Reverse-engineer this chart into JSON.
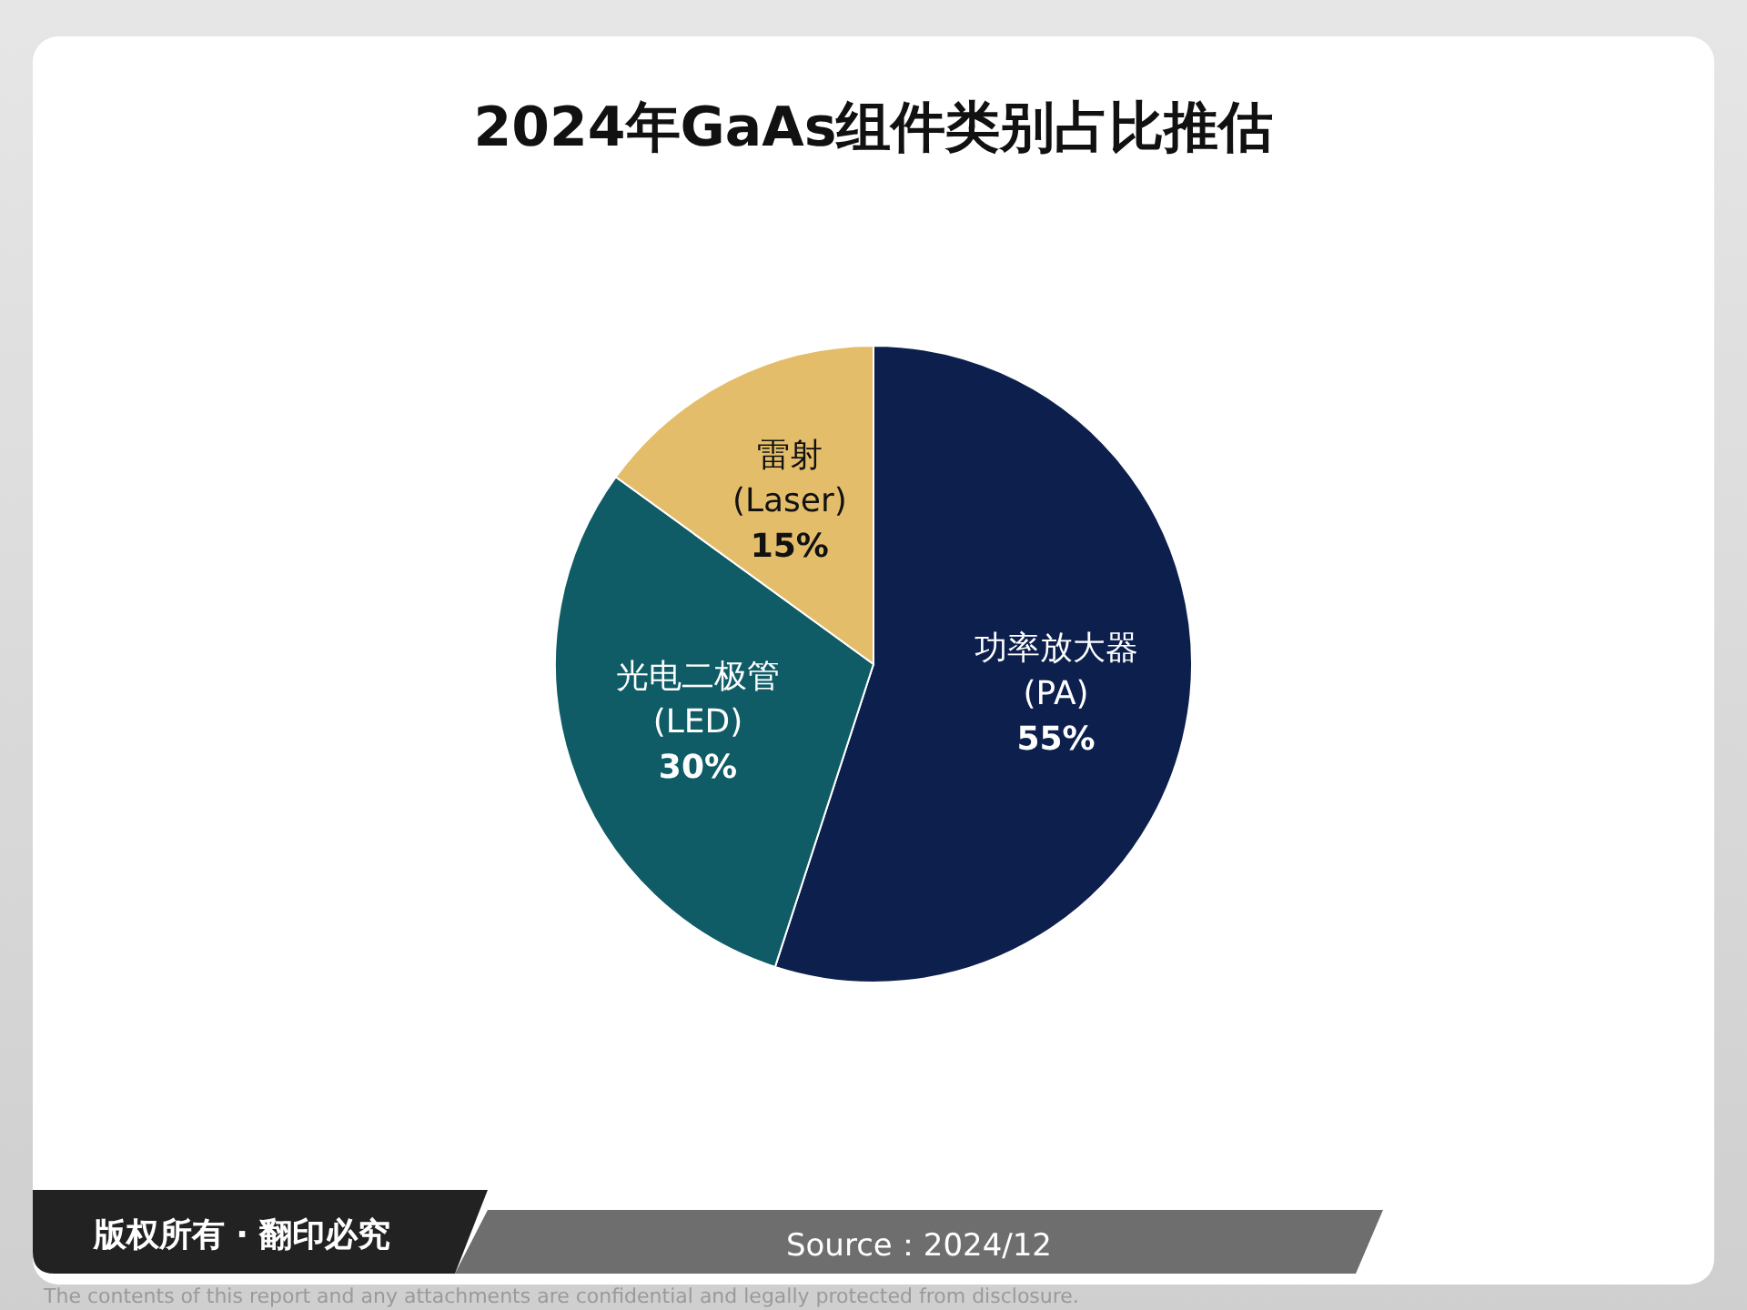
{
  "chart_data": {
    "type": "pie",
    "title": "2024年GaAs组件类别占比推估",
    "categories": [
      "功率放大器 (PA)",
      "光电二极管 (LED)",
      "雷射 (Laser)"
    ],
    "values": [
      55,
      30,
      15
    ],
    "value_labels": [
      "55%",
      "30%",
      "15%"
    ],
    "colors": [
      "#0c1f4d",
      "#0f5c66",
      "#e3bd6a"
    ],
    "legend": false,
    "annotations": [
      "版权所有 · 翻印必究",
      "Source：2024/12",
      "The contents of this report and any attachments are confidential and legally protected from disclosure."
    ]
  }
}
